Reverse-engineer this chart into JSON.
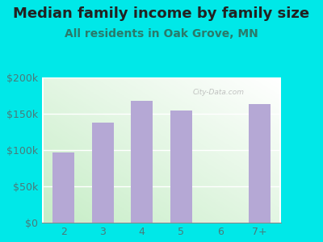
{
  "categories": [
    "2",
    "3",
    "4",
    "5",
    "6",
    "7+"
  ],
  "values": [
    97000,
    138000,
    168000,
    155000,
    0,
    163000
  ],
  "bar_color": "#b5a8d5",
  "background_color": "#00e8e8",
  "title": "Median family income by family size",
  "subtitle": "All residents in Oak Grove, MN",
  "title_color": "#222222",
  "subtitle_color": "#2a7a6a",
  "tick_color": "#4a7a7a",
  "ylim": [
    0,
    200000
  ],
  "yticks": [
    0,
    50000,
    100000,
    150000,
    200000
  ],
  "ytick_labels": [
    "$0",
    "$50k",
    "$100k",
    "$150k",
    "$200k"
  ],
  "title_fontsize": 13,
  "subtitle_fontsize": 10,
  "axis_fontsize": 9,
  "watermark": "City-Data.com",
  "plot_bg_color_topleft": "#e8f5e8",
  "plot_bg_color_bottomleft": "#c8eec8",
  "plot_bg_color_topright": "#ffffff",
  "plot_bg_color_bottomright": "#e8f5e8"
}
